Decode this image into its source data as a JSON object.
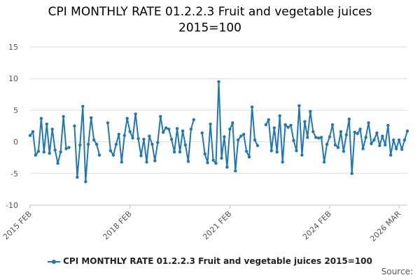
{
  "title_line1": "CPI MONTHLY RATE 01.2.2.3 Fruit and vegetable juices",
  "title_line2": "2015=100",
  "source_label": "Source:",
  "colors": {
    "series": "#1f78b4",
    "grid": "#dddddd",
    "axis": "#c0c0c0",
    "tick_text": "#555555"
  },
  "chart_data": {
    "type": "line",
    "title": "CPI MONTHLY RATE 01.2.2.3 Fruit and vegetable juices 2015=100",
    "ylim": [
      -10,
      15
    ],
    "yticks": [
      -10,
      -5,
      0,
      5,
      10,
      15
    ],
    "x_range": [
      "2015 FEB",
      "2026 MAR"
    ],
    "xticks": [
      "2015 FEB",
      "2018 FEB",
      "2021 FEB",
      "2024 FEB",
      "2026 MAR"
    ],
    "grid": true,
    "legend_position": "bottom",
    "series": [
      {
        "name": "CPI MONTHLY RATE 01.2.2.3 Fruit and vegetable juices 2015=100",
        "values": [
          1.0,
          1.6,
          -2.1,
          -1.5,
          3.7,
          -1.6,
          2.8,
          -1.8,
          2.0,
          -1.3,
          -3.4,
          -1.6,
          4.0,
          -1.1,
          -0.9,
          null,
          2.5,
          -5.6,
          -0.5,
          5.6,
          -6.3,
          -0.4,
          3.8,
          0.3,
          -0.4,
          -2.1,
          null,
          null,
          3.0,
          -1.4,
          -2.1,
          -0.4,
          1.2,
          -3.2,
          1.0,
          3.7,
          1.6,
          0.6,
          4.4,
          0.5,
          -2.2,
          0.4,
          -3.2,
          0.9,
          -0.4,
          -3.0,
          -0.1,
          4.0,
          1.5,
          2.2,
          2.0,
          0.4,
          -1.6,
          2.1,
          -1.6,
          1.7,
          -0.5,
          -3.1,
          2.0,
          3.5,
          null,
          null,
          1.4,
          -1.9,
          -3.3,
          2.8,
          -2.9,
          -3.4,
          9.5,
          -2.6,
          0.8,
          -4.0,
          2.0,
          3.0,
          -4.6,
          0.3,
          0.9,
          1.2,
          -1.5,
          -2.4,
          5.5,
          0.3,
          -0.6,
          null,
          null,
          2.7,
          3.5,
          -1.4,
          2.2,
          -1.6,
          4.1,
          -3.2,
          2.7,
          2.3,
          2.6,
          0.2,
          -1.4,
          5.7,
          -2.1,
          3.2,
          0.7,
          4.8,
          1.6,
          0.7,
          0.6,
          0.7,
          -3.2,
          -0.4,
          0.8,
          2.7,
          -0.5,
          -0.9,
          1.6,
          -1.5,
          1.1,
          3.6,
          -5.0,
          1.5,
          1.3,
          2.0,
          -1.1,
          0.7,
          3.0,
          -0.3,
          0.3,
          1.4,
          -0.6,
          0.9,
          -0.5,
          2.6,
          -2.1,
          0.3,
          -1.1,
          0.3,
          -1.2,
          0.3,
          1.7
        ]
      }
    ]
  }
}
